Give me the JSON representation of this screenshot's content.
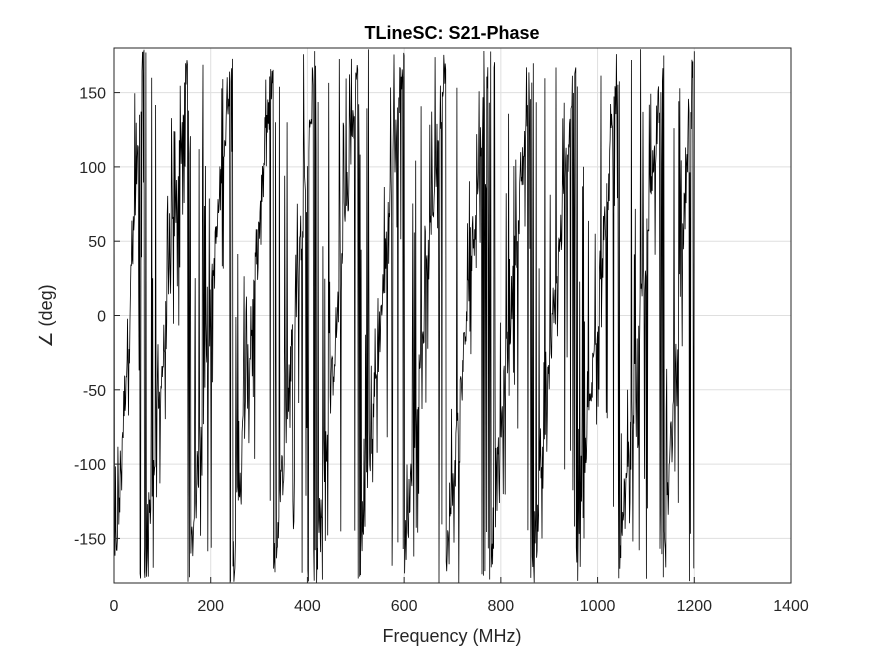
{
  "chart_data": {
    "type": "line",
    "title": "TLineSC: S21-Phase",
    "xlabel": "Frequency (MHz)",
    "ylabel": "∠ (deg)",
    "xlim": [
      0,
      1400
    ],
    "ylim": [
      -180,
      180
    ],
    "xticks": [
      0,
      200,
      400,
      600,
      800,
      1000,
      1200,
      1400
    ],
    "yticks": [
      -150,
      -100,
      -50,
      0,
      50,
      100,
      150
    ],
    "xtick_labels": [
      "0",
      "200",
      "400",
      "600",
      "800",
      "1000",
      "1200",
      "1400"
    ],
    "ytick_labels": [
      "-150",
      "-100",
      "-50",
      "0",
      "50",
      "100",
      "150"
    ],
    "grid": true,
    "line_color": "#000000",
    "series": [
      {
        "x_range": [
          0,
          1200
        ],
        "num_points": 1200,
        "wrap_frequencies_mhz": [
          0,
          63,
          155,
          243,
          330,
          417,
          507,
          597,
          685,
          775,
          865,
          955,
          1045,
          1135,
          1200
        ],
        "description_values": {
          "min": -180,
          "max": 180
        }
      }
    ]
  }
}
